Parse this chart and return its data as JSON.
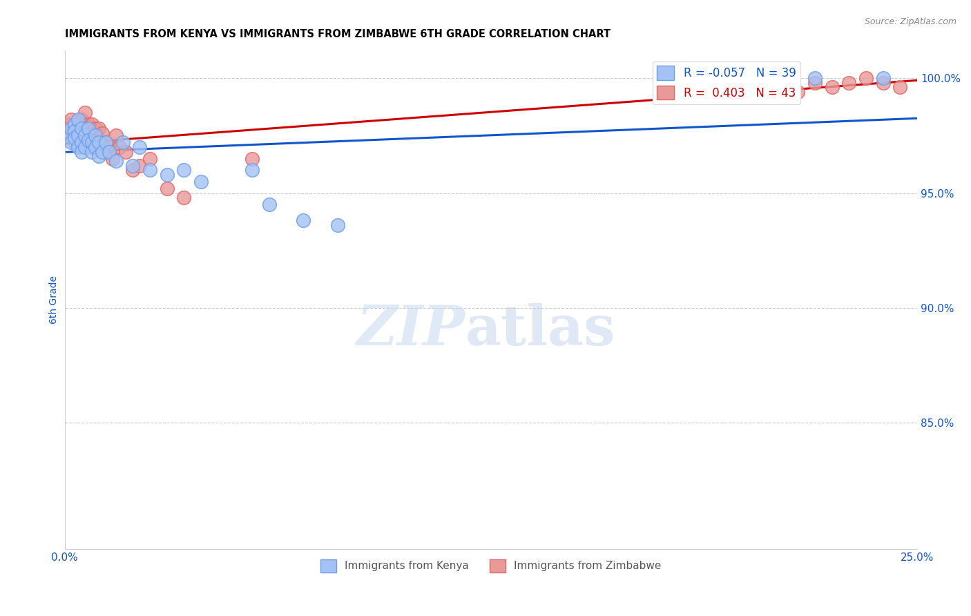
{
  "title": "IMMIGRANTS FROM KENYA VS IMMIGRANTS FROM ZIMBABWE 6TH GRADE CORRELATION CHART",
  "source": "Source: ZipAtlas.com",
  "ylabel": "6th Grade",
  "xlim": [
    0.0,
    0.25
  ],
  "ylim": [
    0.795,
    1.012
  ],
  "yticks": [
    0.85,
    0.9,
    0.95,
    1.0
  ],
  "ytick_labels": [
    "85.0%",
    "90.0%",
    "95.0%",
    "100.0%"
  ],
  "xticks": [
    0.0,
    0.05,
    0.1,
    0.15,
    0.2,
    0.25
  ],
  "xtick_labels": [
    "0.0%",
    "",
    "",
    "",
    "",
    "25.0%"
  ],
  "kenya_color": "#a4c2f4",
  "kenya_edge": "#6d9eeb",
  "zimbabwe_color": "#ea9999",
  "zimbabwe_edge": "#e06666",
  "trend_kenya_color": "#1155cc",
  "trend_zimbabwe_color": "#cc0000",
  "R_kenya": -0.057,
  "N_kenya": 39,
  "R_zimbabwe": 0.403,
  "N_zimbabwe": 43,
  "kenya_x": [
    0.001,
    0.002,
    0.002,
    0.003,
    0.003,
    0.003,
    0.004,
    0.004,
    0.004,
    0.005,
    0.005,
    0.005,
    0.006,
    0.006,
    0.007,
    0.007,
    0.008,
    0.008,
    0.009,
    0.009,
    0.01,
    0.01,
    0.011,
    0.012,
    0.013,
    0.015,
    0.017,
    0.02,
    0.022,
    0.025,
    0.03,
    0.035,
    0.04,
    0.055,
    0.06,
    0.07,
    0.08,
    0.22,
    0.24
  ],
  "kenya_y": [
    0.975,
    0.978,
    0.972,
    0.98,
    0.977,
    0.974,
    0.982,
    0.975,
    0.97,
    0.978,
    0.972,
    0.968,
    0.975,
    0.97,
    0.978,
    0.973,
    0.972,
    0.968,
    0.975,
    0.97,
    0.972,
    0.966,
    0.968,
    0.972,
    0.968,
    0.964,
    0.972,
    0.962,
    0.97,
    0.96,
    0.958,
    0.96,
    0.955,
    0.96,
    0.945,
    0.938,
    0.936,
    1.0,
    1.0
  ],
  "zimbabwe_x": [
    0.001,
    0.002,
    0.002,
    0.003,
    0.003,
    0.004,
    0.004,
    0.005,
    0.005,
    0.006,
    0.006,
    0.007,
    0.007,
    0.008,
    0.008,
    0.008,
    0.009,
    0.009,
    0.01,
    0.01,
    0.011,
    0.012,
    0.013,
    0.014,
    0.015,
    0.016,
    0.018,
    0.02,
    0.022,
    0.025,
    0.03,
    0.035,
    0.055,
    0.2,
    0.205,
    0.21,
    0.215,
    0.22,
    0.225,
    0.23,
    0.235,
    0.24,
    0.245
  ],
  "zimbabwe_y": [
    0.98,
    0.975,
    0.982,
    0.978,
    0.972,
    0.98,
    0.976,
    0.982,
    0.975,
    0.985,
    0.978,
    0.98,
    0.975,
    0.98,
    0.974,
    0.97,
    0.978,
    0.972,
    0.978,
    0.97,
    0.976,
    0.972,
    0.97,
    0.965,
    0.975,
    0.97,
    0.968,
    0.96,
    0.962,
    0.965,
    0.952,
    0.948,
    0.965,
    1.0,
    0.998,
    0.996,
    0.994,
    0.998,
    0.996,
    0.998,
    1.0,
    0.998,
    0.996
  ],
  "watermark_zip": "ZIP",
  "watermark_atlas": "atlas",
  "background_color": "#ffffff",
  "grid_color": "#cccccc",
  "title_color": "#000000",
  "axis_label_color": "#1155cc",
  "tick_color": "#1155cc"
}
